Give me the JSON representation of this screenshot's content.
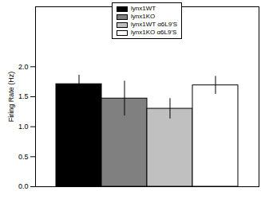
{
  "chart_data": {
    "type": "bar",
    "ylabel": "Firing Rate (Hz)",
    "categories": [
      null
    ],
    "series": [
      {
        "name": "lynx1WT",
        "color": "#000000",
        "values": [
          1.71
        ],
        "errors": [
          0.15
        ]
      },
      {
        "name": "lynx1KO",
        "color": "#808080",
        "values": [
          1.47
        ],
        "errors": [
          0.29
        ]
      },
      {
        "name": "lynx1WT α6L9'S",
        "color": "#c0c0c0",
        "values": [
          1.3
        ],
        "errors": [
          0.17
        ]
      },
      {
        "name": "lynx1KO α6L9'S",
        "color": "#ffffff",
        "values": [
          1.69
        ],
        "errors": [
          0.15
        ]
      }
    ],
    "ylim": [
      0,
      3.0
    ],
    "yticks": [
      {
        "value": 0,
        "label": "0.0"
      },
      {
        "value": 0.5,
        "label": "0.5"
      },
      {
        "value": 1,
        "label": "1.0"
      },
      {
        "value": 1.5,
        "label": "1.5"
      },
      {
        "value": 2,
        "label": "2.0"
      }
    ],
    "legend": "top",
    "tick_labels": "y",
    "grid": false
  }
}
